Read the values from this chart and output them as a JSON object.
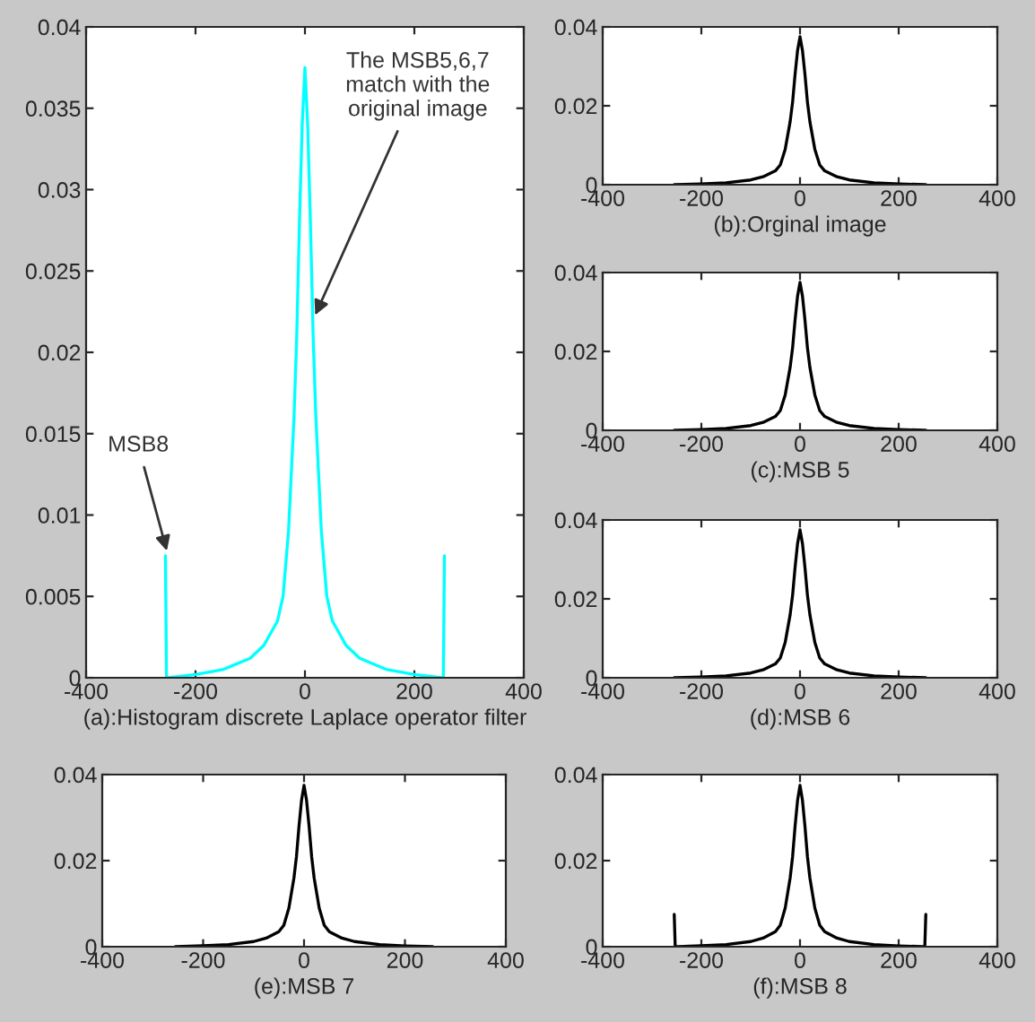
{
  "chart_data": [
    {
      "type": "line",
      "xlabel": "(a):Histogram discrete Laplace operator filter",
      "xlim": [
        -400,
        400
      ],
      "ylim": [
        0,
        0.04
      ],
      "xticks": [
        -400,
        -200,
        0,
        200,
        400
      ],
      "yticks": [
        0,
        0.005,
        0.01,
        0.015,
        0.02,
        0.025,
        0.03,
        0.035,
        0.04
      ],
      "grid": false,
      "series": [
        {
          "color": "#00ffff",
          "x": [
            -255,
            -253,
            -250,
            -200,
            -150,
            -100,
            -75,
            -50,
            -40,
            -30,
            -20,
            -15,
            -10,
            -5,
            0,
            5,
            10,
            15,
            20,
            30,
            40,
            50,
            75,
            100,
            150,
            200,
            250,
            253,
            255
          ],
          "values": [
            0.0075,
            0,
            0,
            0.0002,
            0.0005,
            0.0012,
            0.002,
            0.0035,
            0.005,
            0.009,
            0.016,
            0.021,
            0.028,
            0.034,
            0.0375,
            0.034,
            0.028,
            0.021,
            0.016,
            0.009,
            0.005,
            0.0035,
            0.002,
            0.0012,
            0.0005,
            0.0002,
            0,
            0,
            0.0075
          ]
        }
      ],
      "annotations": [
        {
          "text": "The MSB5,6,7\nmatch with the\noriginal image",
          "x": 15,
          "y": 0.022
        },
        {
          "text": "MSB8",
          "x": -250,
          "y": 0.0075
        }
      ]
    },
    {
      "type": "line",
      "xlabel": "(b):Orginal image",
      "xlim": [
        -400,
        400
      ],
      "ylim": [
        0,
        0.04
      ],
      "xticks": [
        -400,
        -200,
        0,
        200,
        400
      ],
      "yticks": [
        0,
        0.02,
        0.04
      ],
      "grid": false,
      "series": [
        {
          "color": "#000000",
          "x": [
            -255,
            -200,
            -150,
            -100,
            -75,
            -50,
            -40,
            -30,
            -20,
            -15,
            -10,
            -5,
            0,
            5,
            10,
            15,
            20,
            30,
            40,
            50,
            75,
            100,
            150,
            200,
            255
          ],
          "values": [
            0,
            0.0002,
            0.0005,
            0.0012,
            0.002,
            0.0035,
            0.005,
            0.009,
            0.016,
            0.021,
            0.028,
            0.034,
            0.0375,
            0.034,
            0.028,
            0.021,
            0.016,
            0.009,
            0.005,
            0.0035,
            0.002,
            0.0012,
            0.0005,
            0.0002,
            0
          ]
        }
      ]
    },
    {
      "type": "line",
      "xlabel": "(c):MSB 5",
      "xlim": [
        -400,
        400
      ],
      "ylim": [
        0,
        0.04
      ],
      "xticks": [
        -400,
        -200,
        0,
        200,
        400
      ],
      "yticks": [
        0,
        0.02,
        0.04
      ],
      "grid": false,
      "series": [
        {
          "color": "#000000",
          "x": [
            -255,
            -200,
            -150,
            -100,
            -75,
            -50,
            -40,
            -30,
            -20,
            -15,
            -10,
            -5,
            0,
            5,
            10,
            15,
            20,
            30,
            40,
            50,
            75,
            100,
            150,
            200,
            255
          ],
          "values": [
            0,
            0.0002,
            0.0005,
            0.0012,
            0.002,
            0.0035,
            0.005,
            0.009,
            0.016,
            0.021,
            0.028,
            0.034,
            0.0375,
            0.034,
            0.028,
            0.021,
            0.016,
            0.009,
            0.005,
            0.0035,
            0.002,
            0.0012,
            0.0005,
            0.0002,
            0
          ]
        }
      ]
    },
    {
      "type": "line",
      "xlabel": "(d):MSB 6",
      "xlim": [
        -400,
        400
      ],
      "ylim": [
        0,
        0.04
      ],
      "xticks": [
        -400,
        -200,
        0,
        200,
        400
      ],
      "yticks": [
        0,
        0.02,
        0.04
      ],
      "grid": false,
      "series": [
        {
          "color": "#000000",
          "x": [
            -255,
            -200,
            -150,
            -100,
            -75,
            -50,
            -40,
            -30,
            -20,
            -15,
            -10,
            -5,
            0,
            5,
            10,
            15,
            20,
            30,
            40,
            50,
            75,
            100,
            150,
            200,
            255
          ],
          "values": [
            0,
            0.0002,
            0.0005,
            0.0012,
            0.002,
            0.0035,
            0.005,
            0.009,
            0.016,
            0.021,
            0.028,
            0.034,
            0.0375,
            0.034,
            0.028,
            0.021,
            0.016,
            0.009,
            0.005,
            0.0035,
            0.002,
            0.0012,
            0.0005,
            0.0002,
            0
          ]
        }
      ]
    },
    {
      "type": "line",
      "xlabel": "(e):MSB 7",
      "xlim": [
        -400,
        400
      ],
      "ylim": [
        0,
        0.04
      ],
      "xticks": [
        -400,
        -200,
        0,
        200,
        400
      ],
      "yticks": [
        0,
        0.02,
        0.04
      ],
      "grid": false,
      "series": [
        {
          "color": "#000000",
          "x": [
            -255,
            -200,
            -150,
            -100,
            -75,
            -50,
            -40,
            -30,
            -20,
            -15,
            -10,
            -5,
            0,
            5,
            10,
            15,
            20,
            30,
            40,
            50,
            75,
            100,
            150,
            200,
            255
          ],
          "values": [
            0,
            0.0002,
            0.0005,
            0.0012,
            0.002,
            0.0035,
            0.005,
            0.009,
            0.016,
            0.021,
            0.028,
            0.034,
            0.0375,
            0.034,
            0.028,
            0.021,
            0.016,
            0.009,
            0.005,
            0.0035,
            0.002,
            0.0012,
            0.0005,
            0.0002,
            0
          ]
        }
      ]
    },
    {
      "type": "line",
      "xlabel": "(f):MSB 8",
      "xlim": [
        -400,
        400
      ],
      "ylim": [
        0,
        0.04
      ],
      "xticks": [
        -400,
        -200,
        0,
        200,
        400
      ],
      "yticks": [
        0,
        0.02,
        0.04
      ],
      "grid": false,
      "series": [
        {
          "color": "#000000",
          "x": [
            -255,
            -253,
            -250,
            -200,
            -150,
            -100,
            -75,
            -50,
            -40,
            -30,
            -20,
            -15,
            -10,
            -5,
            0,
            5,
            10,
            15,
            20,
            30,
            40,
            50,
            75,
            100,
            150,
            200,
            250,
            253,
            255
          ],
          "values": [
            0.0075,
            0,
            0,
            0.0002,
            0.0005,
            0.0012,
            0.002,
            0.0035,
            0.005,
            0.009,
            0.016,
            0.021,
            0.028,
            0.034,
            0.0375,
            0.034,
            0.028,
            0.021,
            0.016,
            0.009,
            0.005,
            0.0035,
            0.002,
            0.0012,
            0.0005,
            0.0002,
            0,
            0,
            0.0075
          ]
        }
      ]
    }
  ]
}
